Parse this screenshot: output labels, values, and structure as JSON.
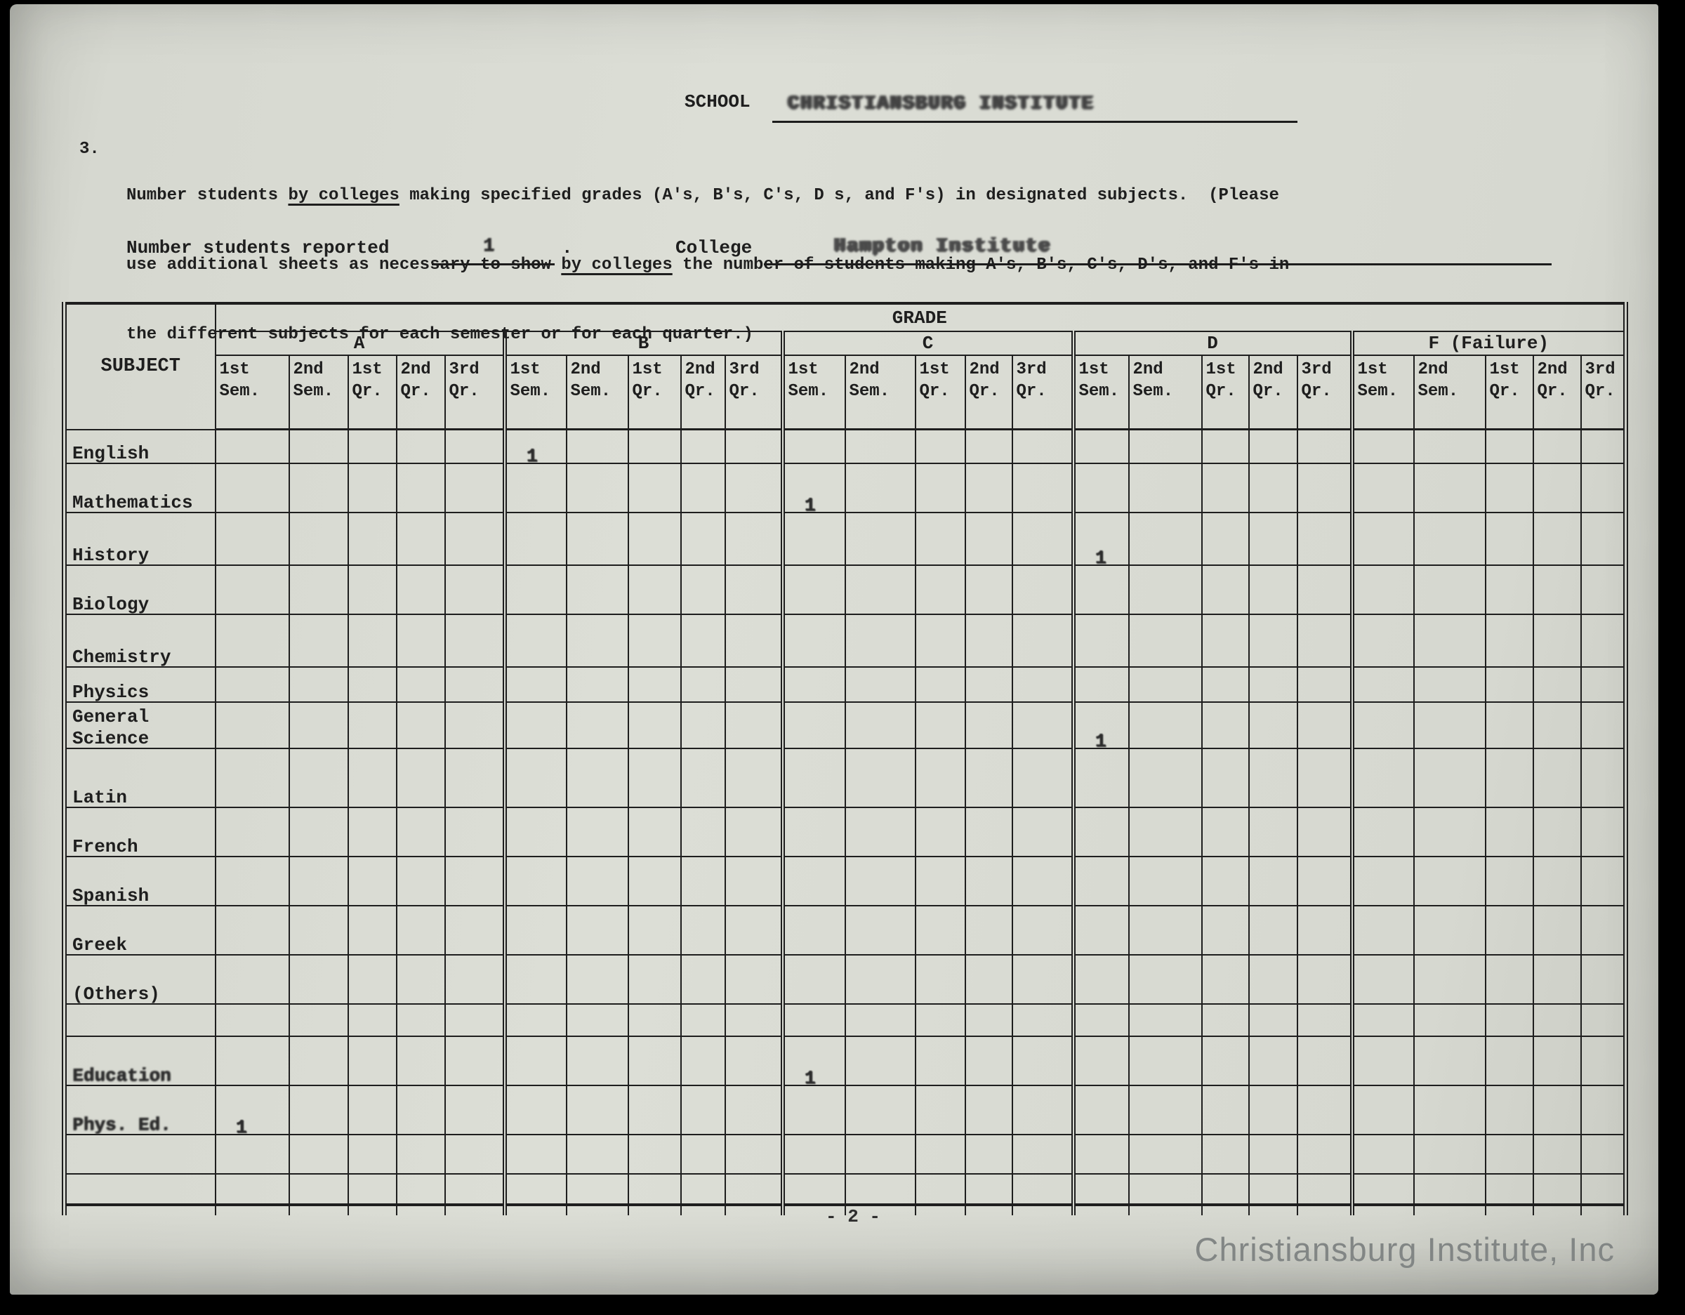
{
  "colors": {
    "paper": "#d7d9d1",
    "ink": "#1e1e1e",
    "watermark": "#828685"
  },
  "header": {
    "school_label": "SCHOOL",
    "school_value": "CHRISTIANSBURG INSTITUTE",
    "item_number": "3.",
    "instruction": {
      "line1_pre": "Number students ",
      "line1_underlined": "by colleges",
      "line1_post": " making specified grades (A's, B's, C's, D s, and F's) in designated subjects.  (Please",
      "line2_pre": "use additional sheets as necessary to show ",
      "line2_underlined": "by colleges",
      "line2_post": " the number of students making A's, B's, C's, D's, and F's in",
      "line3": "the different subjects for each semester or for each quarter.)"
    },
    "reported_label": "Number students reported",
    "reported_value": "1",
    "reported_suffix": ".",
    "college_label": "College",
    "college_value": "Hampton Institute"
  },
  "table": {
    "subject_header": "SUBJECT",
    "grade_header": "GRADE",
    "groups": [
      "A",
      "B",
      "C",
      "D",
      "F (Failure)"
    ],
    "period_columns": [
      "1st Sem.",
      "2nd Sem.",
      "1st Qr.",
      "2nd Qr.",
      "3rd Qr."
    ],
    "rows": [
      {
        "subject_lines": [
          "English"
        ],
        "smudged": false,
        "marks": {
          "5": "1"
        }
      },
      {
        "subject_lines": [
          "Mathematics"
        ],
        "smudged": false,
        "marks": {
          "10": "1"
        }
      },
      {
        "subject_lines": [
          "History"
        ],
        "smudged": false,
        "marks": {
          "15": "1"
        }
      },
      {
        "subject_lines": [
          "Biology"
        ],
        "smudged": false,
        "marks": {}
      },
      {
        "subject_lines": [
          "Chemistry"
        ],
        "smudged": false,
        "marks": {}
      },
      {
        "subject_lines": [
          "Physics"
        ],
        "smudged": false,
        "marks": {}
      },
      {
        "subject_lines": [
          "General",
          "Science"
        ],
        "smudged": false,
        "marks": {
          "15": "1"
        }
      },
      {
        "subject_lines": [
          "Latin"
        ],
        "smudged": false,
        "marks": {}
      },
      {
        "subject_lines": [
          "French"
        ],
        "smudged": false,
        "marks": {}
      },
      {
        "subject_lines": [
          "Spanish"
        ],
        "smudged": false,
        "marks": {}
      },
      {
        "subject_lines": [
          "Greek"
        ],
        "smudged": false,
        "marks": {}
      },
      {
        "subject_lines": [
          "(Others)"
        ],
        "smudged": false,
        "marks": {}
      },
      {
        "subject_lines": [],
        "smudged": false,
        "marks": {}
      },
      {
        "subject_lines": [
          "Education"
        ],
        "smudged": true,
        "marks": {
          "10": "1"
        }
      },
      {
        "subject_lines": [
          "Phys. Ed."
        ],
        "smudged": true,
        "marks": {
          "0": "1"
        }
      },
      {
        "subject_lines": [],
        "smudged": false,
        "marks": {}
      },
      {
        "subject_lines": [],
        "smudged": false,
        "marks": {}
      }
    ]
  },
  "footer": {
    "page_number": "- 2 -",
    "watermark": "Christiansburg Institute, Inc"
  }
}
